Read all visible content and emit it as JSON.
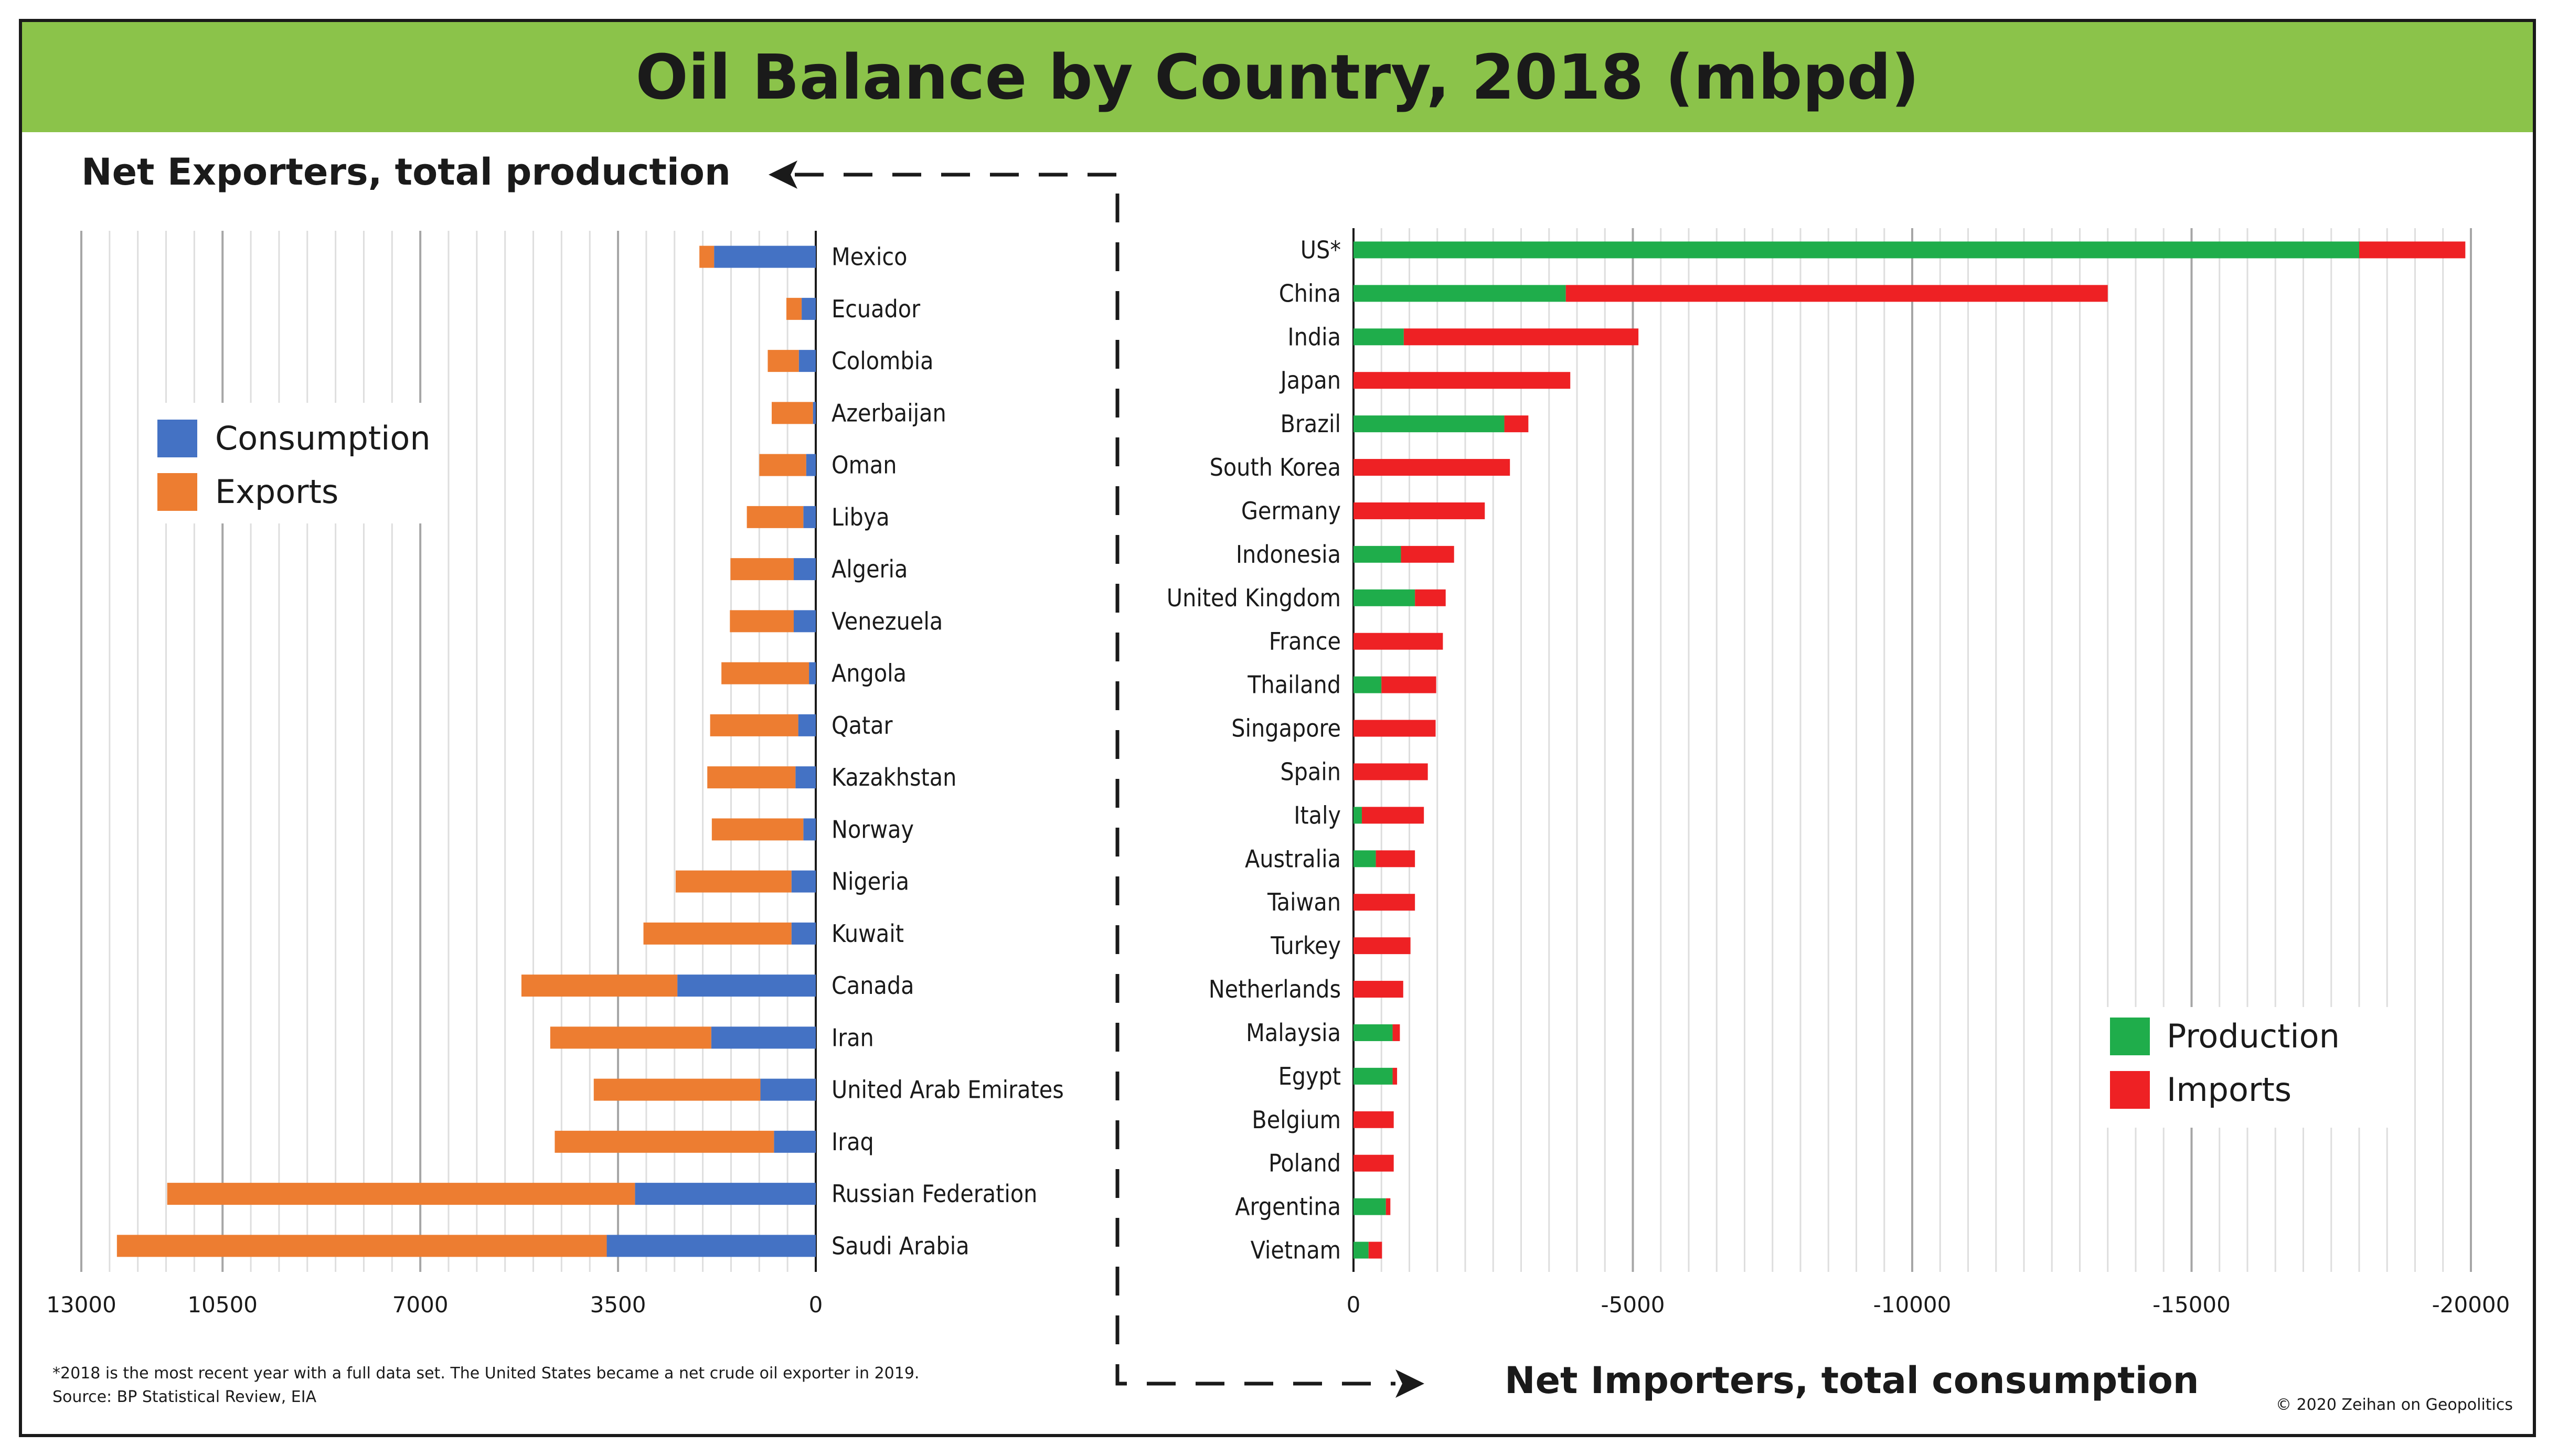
{
  "title": "Oil Balance by Country, 2018 (mbpd)",
  "footnote_1": "*2018 is the most recent year with a full data set. The United States became a net crude oil exporter in 2019.",
  "footnote_2": "Source: BP Statistical Review, EIA",
  "copyright": "© 2020 Zeihan on Geopolitics",
  "colors": {
    "title_bg": "#8bc34a",
    "consumption": "#4472c4",
    "exports": "#ed7d31",
    "production": "#1fad4b",
    "imports": "#ee2124"
  },
  "chart_data": [
    {
      "type": "bar",
      "orientation": "horizontal",
      "stacked": true,
      "title": "Net Exporters, total production",
      "xlim": [
        13000,
        0
      ],
      "ticks": [
        "13000",
        "10500",
        "7000",
        "3500",
        "0"
      ],
      "tick_values": [
        13000,
        10500,
        7000,
        3500,
        0
      ],
      "legend_position": "left",
      "grid": true,
      "categories": [
        "Mexico",
        "Ecuador",
        "Colombia",
        "Azerbaijan",
        "Oman",
        "Libya",
        "Algeria",
        "Venezuela",
        "Angola",
        "Qatar",
        "Kazakhstan",
        "Norway",
        "Nigeria",
        "Kuwait",
        "Canada",
        "Iran",
        "United Arab Emirates",
        "Iraq",
        "Russian Federation",
        "Saudi Arabia"
      ],
      "series": [
        {
          "name": "Consumption",
          "values": [
            1800,
            250,
            300,
            50,
            170,
            220,
            390,
            390,
            120,
            310,
            360,
            220,
            430,
            430,
            2450,
            1850,
            980,
            740,
            3200,
            3700
          ]
        },
        {
          "name": "Exports",
          "values": [
            260,
            270,
            550,
            730,
            830,
            1000,
            1120,
            1130,
            1550,
            1560,
            1560,
            1620,
            2050,
            2620,
            2760,
            2850,
            2950,
            3880,
            8280,
            8670
          ]
        }
      ]
    },
    {
      "type": "bar",
      "orientation": "horizontal",
      "stacked": true,
      "title": "Net Importers, total consumption",
      "xlim": [
        0,
        -20000
      ],
      "ticks": [
        "0",
        "-5000",
        "-10000",
        "-15000",
        "-20000"
      ],
      "tick_values": [
        0,
        -5000,
        -10000,
        -15000,
        -20000
      ],
      "legend_position": "right",
      "grid": true,
      "categories": [
        "US*",
        "China",
        "India",
        "Japan",
        "Brazil",
        "South Korea",
        "Germany",
        "Indonesia",
        "United Kingdom",
        "France",
        "Thailand",
        "Singapore",
        "Spain",
        "Italy",
        "Australia",
        "Taiwan",
        "Turkey",
        "Netherlands",
        "Malaysia",
        "Egypt",
        "Belgium",
        "Poland",
        "Argentina",
        "Vietnam"
      ],
      "series": [
        {
          "name": "Production",
          "values": [
            -18000,
            -3800,
            -900,
            0,
            -2700,
            0,
            0,
            -850,
            -1100,
            0,
            -500,
            0,
            0,
            -150,
            -400,
            0,
            0,
            0,
            -700,
            -700,
            0,
            0,
            -580,
            -270
          ]
        },
        {
          "name": "Imports",
          "values": [
            -1900,
            -9700,
            -4200,
            -3880,
            -430,
            -2800,
            -2350,
            -950,
            -550,
            -1600,
            -980,
            -1470,
            -1330,
            -1110,
            -700,
            -1100,
            -1020,
            -890,
            -130,
            -80,
            -720,
            -720,
            -80,
            -240
          ]
        }
      ]
    }
  ]
}
